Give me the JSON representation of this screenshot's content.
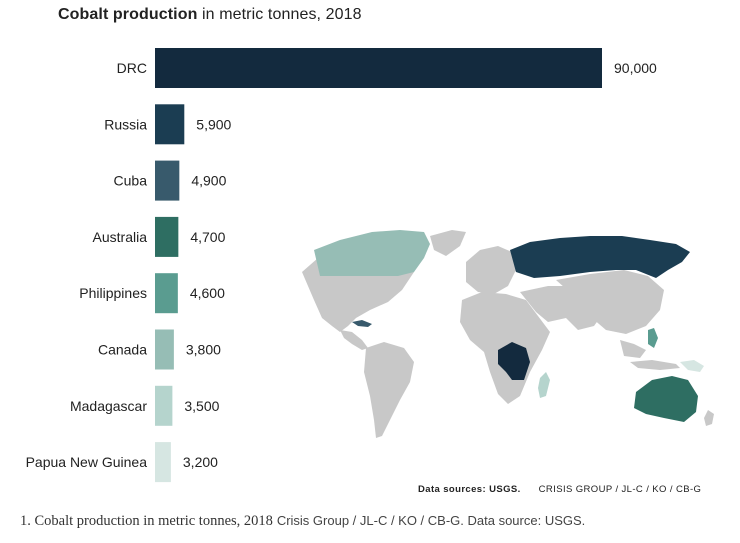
{
  "chart_data": {
    "type": "bar",
    "orientation": "horizontal",
    "title_bold": "Cobalt production",
    "title_rest": "in metric tonnes, 2018",
    "categories": [
      "DRC",
      "Russia",
      "Cuba",
      "Australia",
      "Philippines",
      "Canada",
      "Madagascar",
      "Papua New Guinea"
    ],
    "values": [
      90000,
      5900,
      4900,
      4700,
      4600,
      3800,
      3500,
      3200
    ],
    "value_labels": [
      "90,000",
      "5,900",
      "4,900",
      "4,700",
      "4,600",
      "3,800",
      "3,500",
      "3,200"
    ],
    "colors": [
      "#132a3e",
      "#1b3d52",
      "#385a6c",
      "#2e6e62",
      "#5a9c90",
      "#96bdb5",
      "#b5d4cd",
      "#d6e6e2"
    ],
    "xlim": [
      0,
      90000
    ],
    "grid": false
  },
  "map": {
    "land_color": "#c8c8c8",
    "highlight_colors": {
      "DRC": "#132a3e",
      "Russia": "#1b3d52",
      "Cuba": "#385a6c",
      "Australia": "#2e6e62",
      "Philippines": "#5a9c90",
      "Canada": "#96bdb5",
      "Madagascar": "#b5d4cd",
      "Papua New Guinea": "#d6e6e2"
    }
  },
  "source": {
    "data_sources": "Data sources: USGS.",
    "credit": "CRISIS GROUP / JL-C / KO / CB-G"
  },
  "caption": {
    "title": "1. Cobalt production in metric tonnes, 2018",
    "credit": "Crisis Group / JL-C / KO / CB-G. Data source: USGS."
  }
}
